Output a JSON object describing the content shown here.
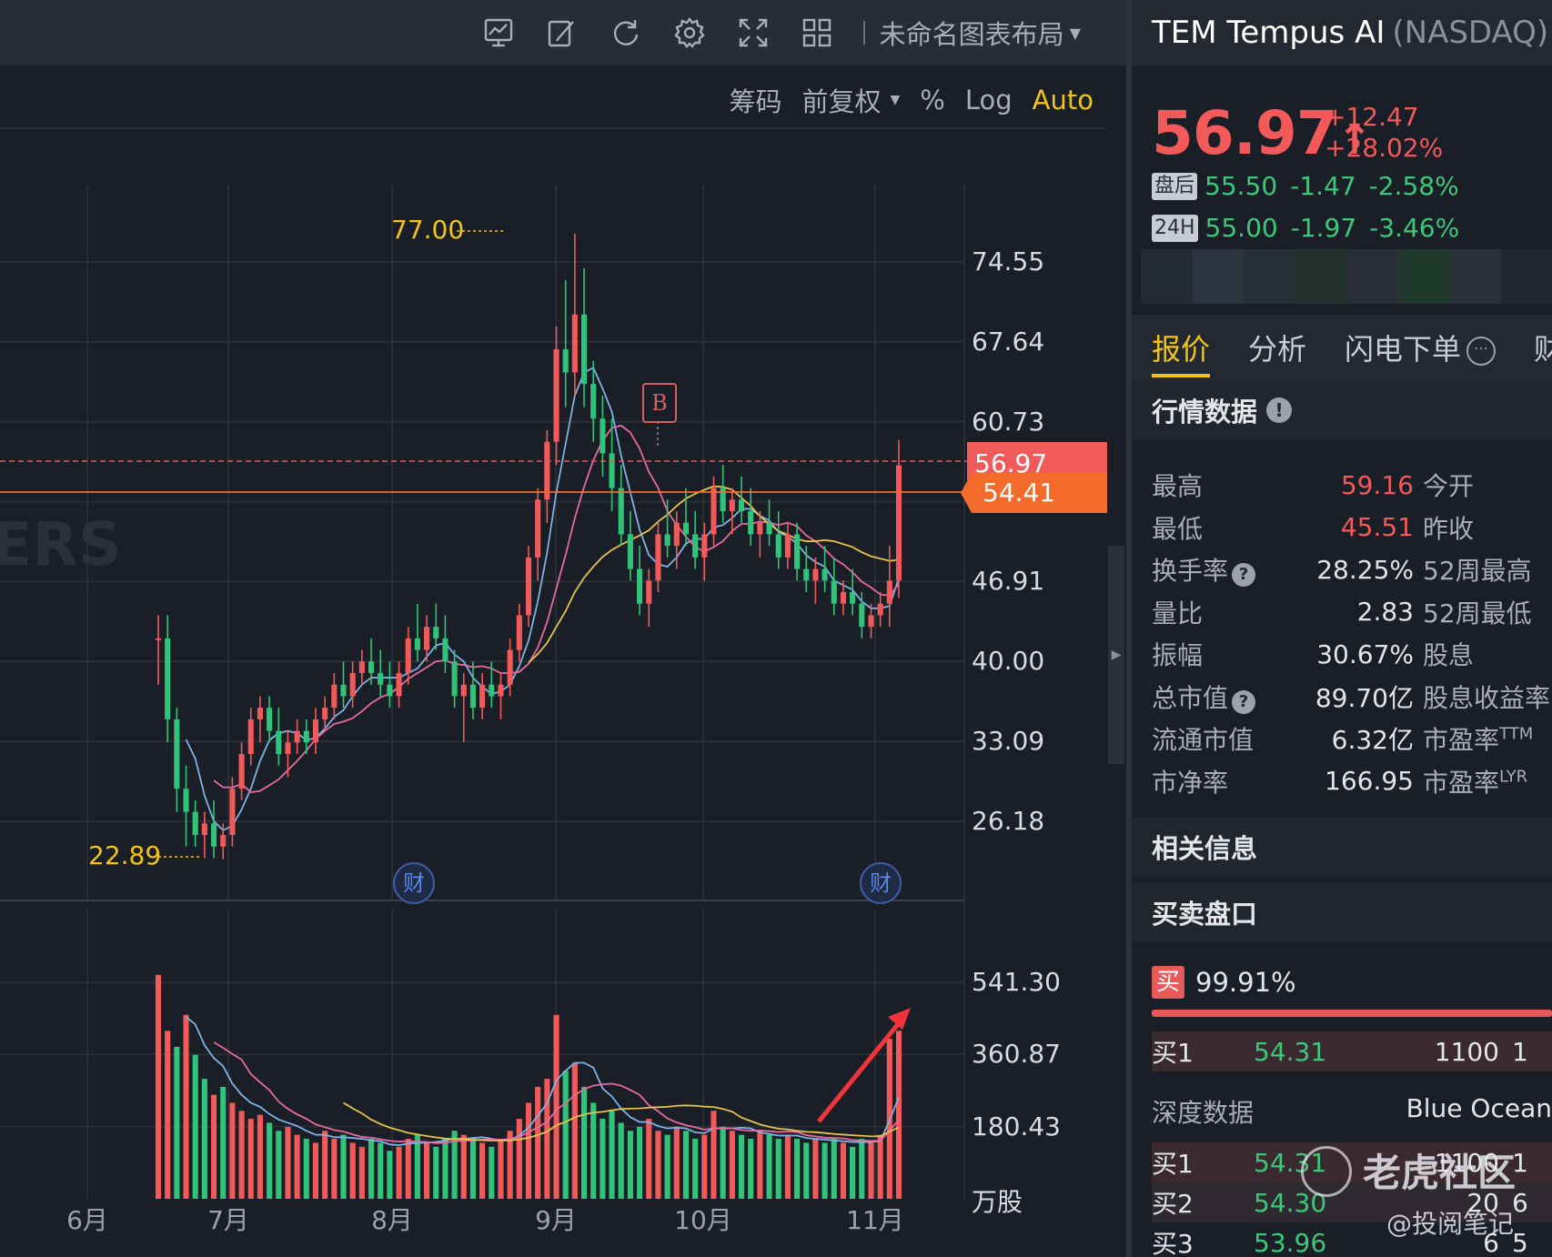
{
  "toolbar": {
    "layout_name": "未命名图表布局",
    "icons": [
      "chart-type-icon",
      "draw-pen-icon",
      "refresh-icon",
      "settings-gear-icon",
      "fullscreen-icon",
      "grid-layout-icon"
    ]
  },
  "chart_options": {
    "chips": "筹码",
    "adjust": "前复权",
    "percent": "%",
    "log": "Log",
    "auto": "Auto"
  },
  "chart_data": {
    "type": "candlestick",
    "price_axis_labels": [
      "74.55",
      "67.64",
      "60.73",
      "46.91",
      "40.00",
      "33.09",
      "26.18"
    ],
    "price_axis_values": [
      74.55,
      67.64,
      60.73,
      46.91,
      40.0,
      33.09,
      26.18
    ],
    "volume_axis_labels": [
      "541.30",
      "360.87",
      "180.43"
    ],
    "volume_axis_values": [
      541.3,
      360.87,
      180.43
    ],
    "volume_unit": "万股",
    "x_axis_labels": [
      "6月",
      "7月",
      "8月",
      "9月",
      "10月",
      "11月"
    ],
    "high_label": "77.00",
    "low_label": "22.89",
    "current_price_tag": "56.97",
    "last_price_tag": "54.41",
    "marker_b": "B",
    "earnings_marker": "财",
    "colors": {
      "up": "#f25a5a",
      "down": "#2fc47a",
      "ma5": "#7fb3e6",
      "ma10": "#e86aa0",
      "ma20": "#e6c34a"
    },
    "candles": [
      [
        42,
        44,
        38,
        42
      ],
      [
        42,
        44,
        33,
        35
      ],
      [
        35,
        36,
        27,
        29
      ],
      [
        29,
        31,
        24,
        27
      ],
      [
        27,
        28,
        24,
        25
      ],
      [
        25,
        27,
        23,
        26
      ],
      [
        26,
        28,
        23,
        24
      ],
      [
        24,
        26,
        22.9,
        25
      ],
      [
        25,
        30,
        24,
        29
      ],
      [
        29,
        33,
        28,
        32
      ],
      [
        32,
        36,
        31,
        35
      ],
      [
        35,
        37,
        33,
        36
      ],
      [
        36,
        37,
        33,
        34
      ],
      [
        34,
        36,
        31,
        32
      ],
      [
        32,
        34,
        30,
        33
      ],
      [
        33,
        35,
        32,
        34
      ],
      [
        34,
        35,
        32,
        33
      ],
      [
        33,
        36,
        32,
        35
      ],
      [
        35,
        37,
        34,
        36
      ],
      [
        36,
        39,
        35,
        38
      ],
      [
        38,
        40,
        36,
        37
      ],
      [
        37,
        40,
        36,
        39
      ],
      [
        39,
        41,
        38,
        40
      ],
      [
        40,
        42,
        38,
        39
      ],
      [
        39,
        41,
        37,
        38
      ],
      [
        38,
        40,
        36,
        37
      ],
      [
        37,
        40,
        36,
        39
      ],
      [
        39,
        43,
        38,
        42
      ],
      [
        42,
        45,
        40,
        41
      ],
      [
        41,
        44,
        40,
        43
      ],
      [
        43,
        45,
        41,
        42
      ],
      [
        42,
        44,
        39,
        40
      ],
      [
        40,
        41,
        36,
        37
      ],
      [
        37,
        39,
        33,
        38
      ],
      [
        38,
        40,
        35,
        36
      ],
      [
        36,
        39,
        35,
        38
      ],
      [
        38,
        40,
        36,
        37
      ],
      [
        37,
        39,
        35,
        38
      ],
      [
        38,
        42,
        37,
        41
      ],
      [
        41,
        45,
        40,
        44
      ],
      [
        44,
        50,
        43,
        49
      ],
      [
        49,
        55,
        47,
        54
      ],
      [
        54,
        60,
        52,
        59
      ],
      [
        59,
        69,
        57,
        67
      ],
      [
        67,
        73,
        62,
        65
      ],
      [
        65,
        77,
        63,
        70
      ],
      [
        70,
        74,
        62,
        64
      ],
      [
        64,
        66,
        59,
        61
      ],
      [
        61,
        63,
        56,
        58
      ],
      [
        58,
        61,
        53,
        55
      ],
      [
        55,
        57,
        50,
        51
      ],
      [
        51,
        53,
        47,
        48
      ],
      [
        48,
        50,
        44,
        45
      ],
      [
        45,
        48,
        43,
        47
      ],
      [
        47,
        52,
        46,
        51
      ],
      [
        51,
        54,
        49,
        50
      ],
      [
        50,
        53,
        48,
        52
      ],
      [
        52,
        55,
        50,
        51
      ],
      [
        51,
        53,
        48,
        49
      ],
      [
        49,
        52,
        47,
        51
      ],
      [
        51,
        56,
        50,
        55
      ],
      [
        55,
        57,
        52,
        53
      ],
      [
        53,
        55,
        51,
        54
      ],
      [
        54,
        56,
        52,
        53
      ],
      [
        53,
        55,
        50,
        51
      ],
      [
        51,
        53,
        49,
        52
      ],
      [
        52,
        54,
        50,
        51
      ],
      [
        51,
        53,
        48,
        49
      ],
      [
        49,
        52,
        48,
        51
      ],
      [
        51,
        52,
        47,
        48
      ],
      [
        48,
        50,
        46,
        47
      ],
      [
        47,
        49,
        45,
        48
      ],
      [
        48,
        50,
        46,
        47
      ],
      [
        47,
        49,
        44,
        45
      ],
      [
        45,
        47,
        44,
        46
      ],
      [
        46,
        48,
        44,
        45
      ],
      [
        45,
        46,
        42,
        43
      ],
      [
        43,
        45,
        42,
        44
      ],
      [
        44,
        46,
        43,
        45
      ],
      [
        45,
        50,
        43,
        47
      ],
      [
        47,
        59.16,
        45.51,
        56.97
      ]
    ],
    "volumes": [
      560,
      420,
      380,
      460,
      360,
      300,
      260,
      280,
      240,
      220,
      200,
      210,
      190,
      170,
      180,
      160,
      150,
      140,
      170,
      150,
      160,
      140,
      130,
      150,
      140,
      120,
      130,
      150,
      160,
      140,
      130,
      150,
      170,
      160,
      150,
      140,
      130,
      150,
      170,
      200,
      240,
      280,
      300,
      460,
      320,
      340,
      280,
      240,
      200,
      220,
      190,
      170,
      180,
      200,
      170,
      160,
      180,
      170,
      150,
      160,
      220,
      180,
      170,
      160,
      150,
      170,
      160,
      150,
      160,
      150,
      140,
      150,
      140,
      150,
      140,
      130,
      150,
      140,
      160,
      400,
      420
    ],
    "volume_up_flags": [
      1,
      1,
      0,
      1,
      0,
      0,
      1,
      0,
      1,
      1,
      1,
      1,
      0,
      0,
      1,
      1,
      0,
      1,
      1,
      1,
      0,
      1,
      1,
      0,
      0,
      0,
      1,
      1,
      0,
      1,
      0,
      0,
      0,
      1,
      0,
      1,
      0,
      1,
      1,
      1,
      1,
      1,
      1,
      1,
      0,
      1,
      0,
      0,
      0,
      0,
      0,
      0,
      0,
      1,
      1,
      0,
      1,
      0,
      0,
      1,
      1,
      0,
      1,
      0,
      0,
      1,
      0,
      0,
      1,
      0,
      0,
      1,
      0,
      0,
      1,
      0,
      0,
      1,
      1,
      1,
      1
    ]
  },
  "quote": {
    "ticker": "TEM Tempus AI",
    "exchange": "(NASDAQ)",
    "price": "56.97",
    "arrow": "↑",
    "change": "+12.47",
    "change_pct": "+28.02%",
    "after_hours_tag": "盘后",
    "after_hours_price": "55.50",
    "after_hours_change": "-1.47",
    "after_hours_pct": "-2.58%",
    "h24_tag": "24H",
    "h24_price": "55.00",
    "h24_change": "-1.97",
    "h24_pct": "-3.46%"
  },
  "tabs": {
    "quote": "报价",
    "analysis": "分析",
    "flash_order": "闪电下单",
    "more": "⋯",
    "extra": "财"
  },
  "market_data": {
    "title": "行情数据",
    "rows": [
      {
        "label": "最高",
        "value": "59.16",
        "label2": "今开",
        "red": true
      },
      {
        "label": "最低",
        "value": "45.51",
        "label2": "昨收",
        "red": true
      },
      {
        "label": "换手率",
        "value": "28.25%",
        "label2": "52周最高",
        "help": true
      },
      {
        "label": "量比",
        "value": "2.83",
        "label2": "52周最低"
      },
      {
        "label": "振幅",
        "value": "30.67%",
        "label2": "股息"
      },
      {
        "label": "总市值",
        "value": "89.70亿",
        "label2": "股息收益率",
        "help": true
      },
      {
        "label": "流通市值",
        "value": "6.32亿",
        "label2": "市盈率",
        "sup": "TTM"
      },
      {
        "label": "市净率",
        "value": "166.95",
        "label2": "市盈率",
        "sup": "LYR"
      }
    ]
  },
  "related": {
    "title": "相关信息"
  },
  "order_book": {
    "title": "买卖盘口",
    "buy_tag": "买",
    "buy_ratio": "99.91%",
    "top": {
      "level": "买1",
      "price": "54.31",
      "qty": "1100",
      "count": "1"
    },
    "depth_label": "深度数据",
    "depth_source": "Blue Ocean",
    "rows": [
      {
        "level": "买1",
        "price": "54.31",
        "qty": "1100",
        "count": "1"
      },
      {
        "level": "买2",
        "price": "54.30",
        "qty": "20",
        "count": "6"
      },
      {
        "level": "买3",
        "price": "53.96",
        "qty": "6",
        "count": "5"
      }
    ]
  },
  "watermarks": {
    "tiger": "老虎社区",
    "credit": "@投阅笔记"
  }
}
